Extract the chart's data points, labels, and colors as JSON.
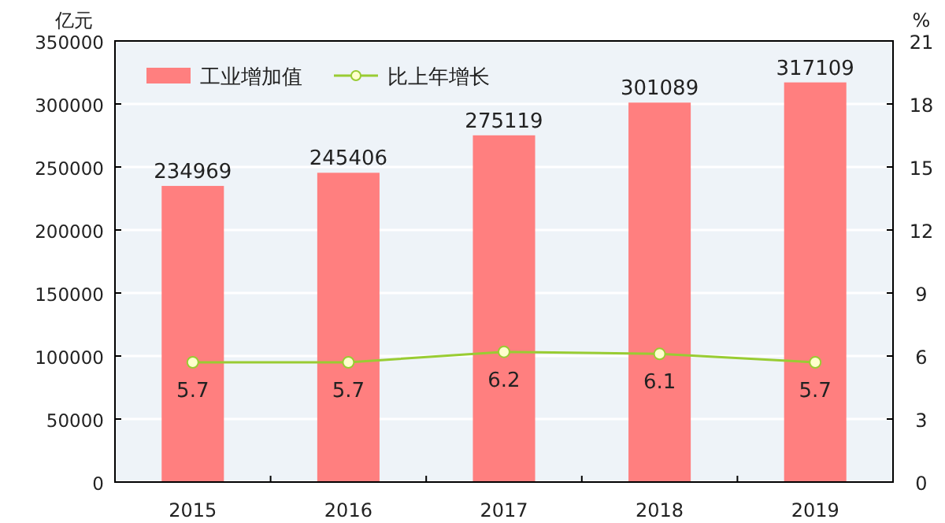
{
  "chart_data": {
    "type": "bar",
    "categories": [
      "2015",
      "2016",
      "2017",
      "2018",
      "2019"
    ],
    "ylabel": "亿元",
    "y2label": "%",
    "ylim": [
      0,
      350000
    ],
    "yticks": [
      0,
      50000,
      100000,
      150000,
      200000,
      250000,
      300000,
      350000
    ],
    "y2lim": [
      0,
      21
    ],
    "y2ticks": [
      0,
      3,
      6,
      9,
      12,
      15,
      18,
      21
    ],
    "series": [
      {
        "name": "工业增加值",
        "color": "#ff7f7f",
        "values": [
          234969,
          245406,
          275119,
          301089,
          317109
        ]
      },
      {
        "name": "比上年增长",
        "type": "line",
        "axis": "y2",
        "color": "#99cc33",
        "values": [
          5.7,
          5.7,
          6.2,
          6.1,
          5.7
        ]
      }
    ],
    "data_labels": true,
    "grid": "y",
    "legend": "top left",
    "marker": "circle"
  }
}
